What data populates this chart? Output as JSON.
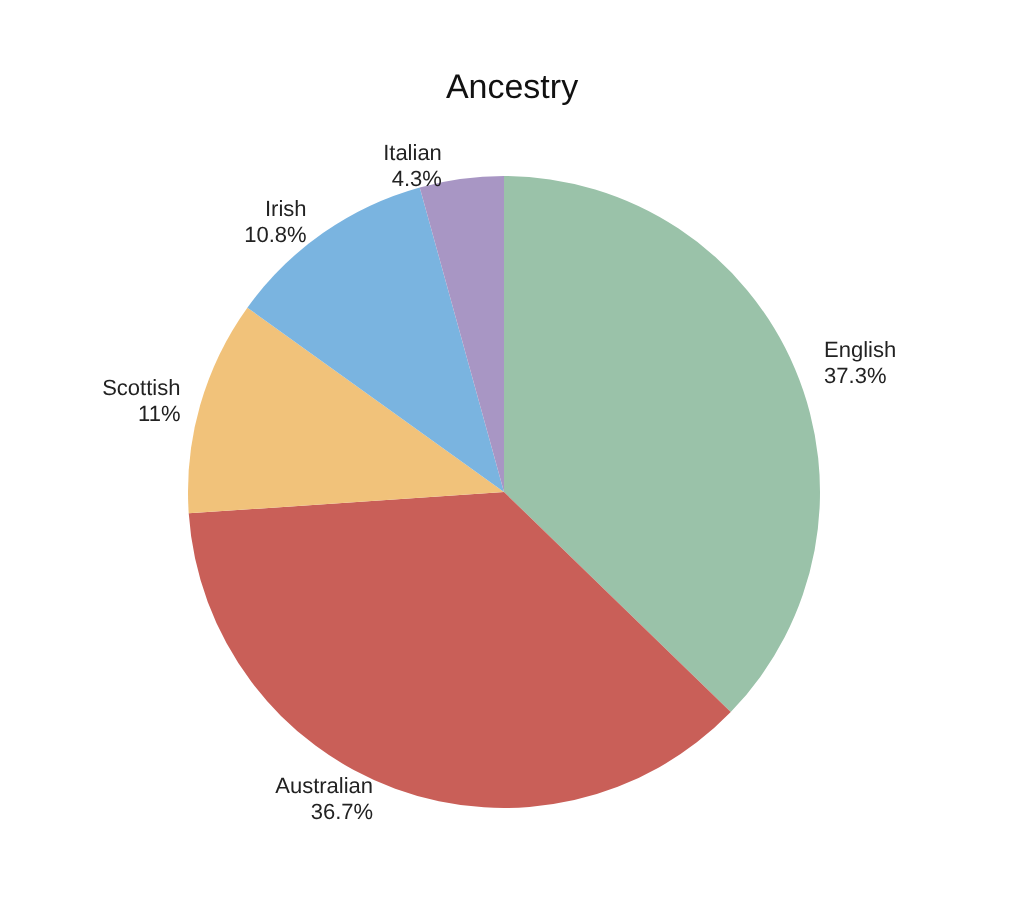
{
  "chart_data": {
    "type": "pie",
    "title": "Ancestry",
    "categories": [
      "English",
      "Australian",
      "Scottish",
      "Irish",
      "Italian"
    ],
    "values": [
      37.3,
      36.7,
      11,
      10.8,
      4.3
    ],
    "value_labels": [
      "37.3%",
      "36.7%",
      "11%",
      "10.8%",
      "4.3%"
    ],
    "colors": [
      "#9ac2a9",
      "#c95f58",
      "#f1c27a",
      "#7ab4e0",
      "#a896c4"
    ]
  }
}
